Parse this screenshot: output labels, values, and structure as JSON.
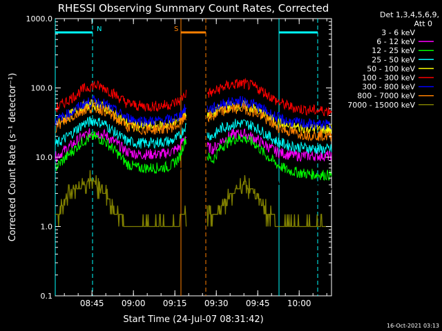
{
  "chart_data": {
    "type": "line",
    "title": "RHESSI Observing Summary Count Rates, Corrected",
    "xlabel": "Start Time (24-Jul-07 08:31:42)",
    "ylabel": "Corrected Count Rate (s⁻¹ detector⁻¹)",
    "ylim": [
      0.1,
      1000
    ],
    "y_scale": "log",
    "y_ticks": [
      {
        "value": 0.1,
        "label": "0.1"
      },
      {
        "value": 1,
        "label": "1.0"
      },
      {
        "value": 10,
        "label": "10.0"
      },
      {
        "value": 100,
        "label": "100.0"
      },
      {
        "value": 1000,
        "label": "1000.0"
      }
    ],
    "xlim_minutes": [
      0,
      100
    ],
    "x_ticks": [
      {
        "minute": 13.3,
        "label": "08:45"
      },
      {
        "minute": 28.3,
        "label": "09:00"
      },
      {
        "minute": 43.3,
        "label": "09:15"
      },
      {
        "minute": 58.3,
        "label": "09:30"
      },
      {
        "minute": 73.3,
        "label": "09:45"
      },
      {
        "minute": 88.3,
        "label": "10:00"
      }
    ],
    "gap_minutes": [
      47.5,
      55.0
    ],
    "legend": {
      "header": [
        "Det 1,3,4,5,6,9,",
        "Att 0"
      ],
      "placement": "right"
    },
    "series": [
      {
        "name": "3 - 6 keV",
        "color": "#000000",
        "points": [
          [
            0,
            4.2
          ],
          [
            6,
            7
          ],
          [
            10,
            11
          ],
          [
            14,
            14.5
          ],
          [
            18,
            12
          ],
          [
            22,
            8
          ],
          [
            26,
            5
          ],
          [
            30,
            4
          ],
          [
            34,
            4
          ],
          [
            38,
            4.1
          ],
          [
            42,
            4.5
          ],
          [
            45,
            6
          ],
          [
            47,
            12
          ],
          [
            57,
            6
          ],
          [
            60,
            9.5
          ],
          [
            64,
            12.5
          ],
          [
            68,
            13.5
          ],
          [
            72,
            11
          ],
          [
            76,
            7.5
          ],
          [
            80,
            5
          ],
          [
            84,
            4
          ],
          [
            88,
            4
          ],
          [
            92,
            4
          ],
          [
            96,
            4
          ],
          [
            100,
            4
          ]
        ]
      },
      {
        "name": "6 - 12 keV",
        "color": "#ff00ff",
        "points": [
          [
            0,
            10
          ],
          [
            6,
            15
          ],
          [
            10,
            20
          ],
          [
            14,
            23
          ],
          [
            18,
            21
          ],
          [
            22,
            16
          ],
          [
            26,
            12
          ],
          [
            30,
            11
          ],
          [
            34,
            11
          ],
          [
            38,
            11
          ],
          [
            42,
            12
          ],
          [
            45,
            14
          ],
          [
            47,
            20
          ],
          [
            57,
            13
          ],
          [
            60,
            17
          ],
          [
            64,
            21
          ],
          [
            68,
            22
          ],
          [
            72,
            19
          ],
          [
            76,
            15
          ],
          [
            80,
            12
          ],
          [
            84,
            11
          ],
          [
            88,
            10.5
          ],
          [
            92,
            10.5
          ],
          [
            96,
            10.5
          ],
          [
            100,
            10.5
          ]
        ]
      },
      {
        "name": "12 - 25 keV",
        "color": "#00ff00",
        "points": [
          [
            0,
            7
          ],
          [
            6,
            12
          ],
          [
            10,
            17
          ],
          [
            14,
            20
          ],
          [
            18,
            17
          ],
          [
            22,
            12
          ],
          [
            26,
            8
          ],
          [
            30,
            7
          ],
          [
            34,
            7
          ],
          [
            38,
            7
          ],
          [
            42,
            7.5
          ],
          [
            45,
            10
          ],
          [
            47,
            18
          ],
          [
            57,
            9
          ],
          [
            60,
            14
          ],
          [
            64,
            18
          ],
          [
            68,
            19
          ],
          [
            72,
            16
          ],
          [
            76,
            11
          ],
          [
            80,
            8
          ],
          [
            84,
            6.5
          ],
          [
            88,
            6
          ],
          [
            92,
            5.7
          ],
          [
            96,
            5.6
          ],
          [
            100,
            5.5
          ]
        ]
      },
      {
        "name": "25 - 50 keV",
        "color": "#00ffff",
        "points": [
          [
            0,
            15
          ],
          [
            6,
            22
          ],
          [
            10,
            30
          ],
          [
            14,
            34
          ],
          [
            18,
            30
          ],
          [
            22,
            22
          ],
          [
            26,
            17
          ],
          [
            30,
            16
          ],
          [
            34,
            16
          ],
          [
            38,
            16.5
          ],
          [
            42,
            17
          ],
          [
            45,
            20
          ],
          [
            47,
            28
          ],
          [
            57,
            20
          ],
          [
            60,
            26
          ],
          [
            64,
            30
          ],
          [
            68,
            31
          ],
          [
            72,
            28
          ],
          [
            76,
            22
          ],
          [
            80,
            17
          ],
          [
            84,
            15
          ],
          [
            88,
            14
          ],
          [
            92,
            13.5
          ],
          [
            96,
            13
          ],
          [
            100,
            13
          ]
        ]
      },
      {
        "name": "50 - 100 keV",
        "color": "#ffff00",
        "points": [
          [
            0,
            30
          ],
          [
            6,
            42
          ],
          [
            10,
            53
          ],
          [
            14,
            58
          ],
          [
            18,
            52
          ],
          [
            22,
            40
          ],
          [
            26,
            31
          ],
          [
            30,
            28
          ],
          [
            34,
            28
          ],
          [
            38,
            28.5
          ],
          [
            42,
            30
          ],
          [
            45,
            34
          ],
          [
            47,
            42
          ],
          [
            57,
            42
          ],
          [
            60,
            50
          ],
          [
            64,
            55
          ],
          [
            68,
            56
          ],
          [
            72,
            50
          ],
          [
            76,
            40
          ],
          [
            80,
            32
          ],
          [
            84,
            28
          ],
          [
            88,
            27
          ],
          [
            92,
            26
          ],
          [
            96,
            25.5
          ],
          [
            100,
            25
          ]
        ]
      },
      {
        "name": "100 - 300 keV",
        "color": "#ff0000",
        "points": [
          [
            0,
            50
          ],
          [
            6,
            72
          ],
          [
            10,
            95
          ],
          [
            14,
            110
          ],
          [
            18,
            100
          ],
          [
            22,
            78
          ],
          [
            26,
            60
          ],
          [
            30,
            55
          ],
          [
            34,
            54
          ],
          [
            38,
            55
          ],
          [
            42,
            58
          ],
          [
            45,
            65
          ],
          [
            47,
            82
          ],
          [
            57,
            85
          ],
          [
            60,
            100
          ],
          [
            64,
            112
          ],
          [
            68,
            115
          ],
          [
            72,
            105
          ],
          [
            76,
            85
          ],
          [
            80,
            65
          ],
          [
            84,
            55
          ],
          [
            88,
            50
          ],
          [
            92,
            48
          ],
          [
            96,
            47
          ],
          [
            100,
            47
          ]
        ]
      },
      {
        "name": "300 - 800 keV",
        "color": "#0000ff",
        "points": [
          [
            0,
            33
          ],
          [
            6,
            45
          ],
          [
            10,
            58
          ],
          [
            14,
            65
          ],
          [
            18,
            58
          ],
          [
            22,
            46
          ],
          [
            26,
            37
          ],
          [
            30,
            34
          ],
          [
            34,
            33
          ],
          [
            38,
            33.5
          ],
          [
            42,
            35
          ],
          [
            45,
            40
          ],
          [
            47,
            50
          ],
          [
            57,
            50
          ],
          [
            60,
            58
          ],
          [
            64,
            63
          ],
          [
            68,
            64
          ],
          [
            72,
            58
          ],
          [
            76,
            47
          ],
          [
            80,
            38
          ],
          [
            84,
            33
          ],
          [
            88,
            31
          ],
          [
            92,
            30
          ],
          [
            96,
            29.5
          ],
          [
            100,
            29
          ]
        ]
      },
      {
        "name": "800 - 7000 keV",
        "color": "#ff8000",
        "points": [
          [
            0,
            27
          ],
          [
            6,
            38
          ],
          [
            10,
            48
          ],
          [
            14,
            52
          ],
          [
            18,
            47
          ],
          [
            22,
            36
          ],
          [
            26,
            28
          ],
          [
            30,
            25
          ],
          [
            34,
            25
          ],
          [
            38,
            25.5
          ],
          [
            42,
            27
          ],
          [
            45,
            30
          ],
          [
            47,
            38
          ],
          [
            57,
            38
          ],
          [
            60,
            45
          ],
          [
            64,
            50
          ],
          [
            68,
            51
          ],
          [
            72,
            45
          ],
          [
            76,
            36
          ],
          [
            80,
            28
          ],
          [
            84,
            24
          ],
          [
            88,
            22
          ],
          [
            92,
            21
          ],
          [
            96,
            20.5
          ],
          [
            100,
            20
          ]
        ]
      },
      {
        "name": "7000 - 15000 keV",
        "color": "#808000",
        "points": [
          [
            0,
            1.5
          ],
          [
            3,
            2
          ],
          [
            5,
            3
          ],
          [
            8,
            3.5
          ],
          [
            11,
            4
          ],
          [
            13,
            5
          ],
          [
            15,
            4
          ],
          [
            18,
            3
          ],
          [
            20,
            2
          ],
          [
            23,
            1.5
          ],
          [
            26,
            1
          ],
          [
            30,
            1
          ],
          [
            34,
            1
          ],
          [
            38,
            1
          ],
          [
            42,
            1
          ],
          [
            45,
            1.2
          ],
          [
            47,
            1.5
          ],
          [
            57,
            1.5
          ],
          [
            60,
            2
          ],
          [
            64,
            3
          ],
          [
            68,
            4
          ],
          [
            71,
            3.5
          ],
          [
            74,
            2.5
          ],
          [
            77,
            1.5
          ],
          [
            80,
            1.2
          ],
          [
            84,
            1
          ],
          [
            88,
            1
          ],
          [
            92,
            1
          ],
          [
            96,
            1
          ],
          [
            100,
            1
          ]
        ]
      }
    ],
    "flag_markers": [
      {
        "label": "N",
        "color": "#00ffff",
        "kind": "night",
        "start": 0,
        "end": 13.5
      },
      {
        "label": "S",
        "color": "#ff8000",
        "kind": "saa",
        "start": 45.5,
        "end": 54.5
      },
      {
        "label": "",
        "color": "#00ffff",
        "kind": "night",
        "start": 81,
        "end": 95
      }
    ]
  },
  "footer": {
    "timestamp": "16-Oct-2021 03:13"
  }
}
